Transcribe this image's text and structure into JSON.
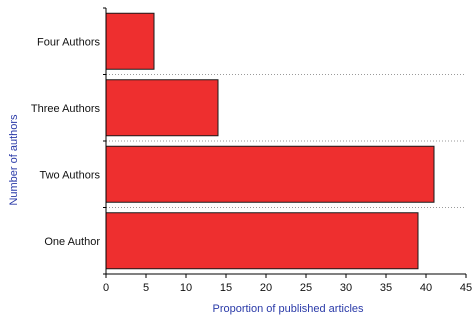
{
  "chart_data": {
    "type": "bar",
    "orientation": "horizontal",
    "categories": [
      "One Author",
      "Two Authors",
      "Three Authors",
      "Four Authors"
    ],
    "values": [
      39,
      41,
      14,
      6
    ],
    "xlabel": "Proportion of published articles",
    "ylabel": "Number of authors",
    "xlim": [
      0,
      45
    ],
    "xticks": [
      "0",
      "5",
      "10",
      "15",
      "20",
      "25",
      "30",
      "35",
      "40",
      "45"
    ],
    "grid": "dotted horizontal separators between categories",
    "legend": "none",
    "colors": {
      "bar_fill": "#ee2f2f",
      "bar_stroke": "#1a1a1a",
      "axis": "#000000",
      "grid": "#9a9a9a",
      "axis_title": "#2a3aa8",
      "tick_text": "#111111"
    }
  }
}
